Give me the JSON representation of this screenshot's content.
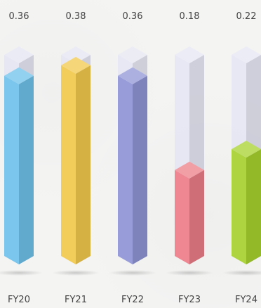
{
  "chart_data": {
    "type": "bar",
    "categories": [
      "FY20",
      "FY21",
      "FY22",
      "FY23",
      "FY24"
    ],
    "values": [
      0.36,
      0.38,
      0.36,
      0.18,
      0.22
    ],
    "value_labels": [
      "0.36",
      "0.38",
      "0.36",
      "0.18",
      "0.22"
    ],
    "ylim": [
      0,
      0.4
    ],
    "title": "",
    "xlabel": "",
    "ylabel": "",
    "grid": false,
    "colors": {
      "bars": [
        "#6ec1ea",
        "#f2c94c",
        "#8f95d6",
        "#ec7d87",
        "#a7d12e"
      ],
      "track": "#e3e3f3"
    }
  }
}
